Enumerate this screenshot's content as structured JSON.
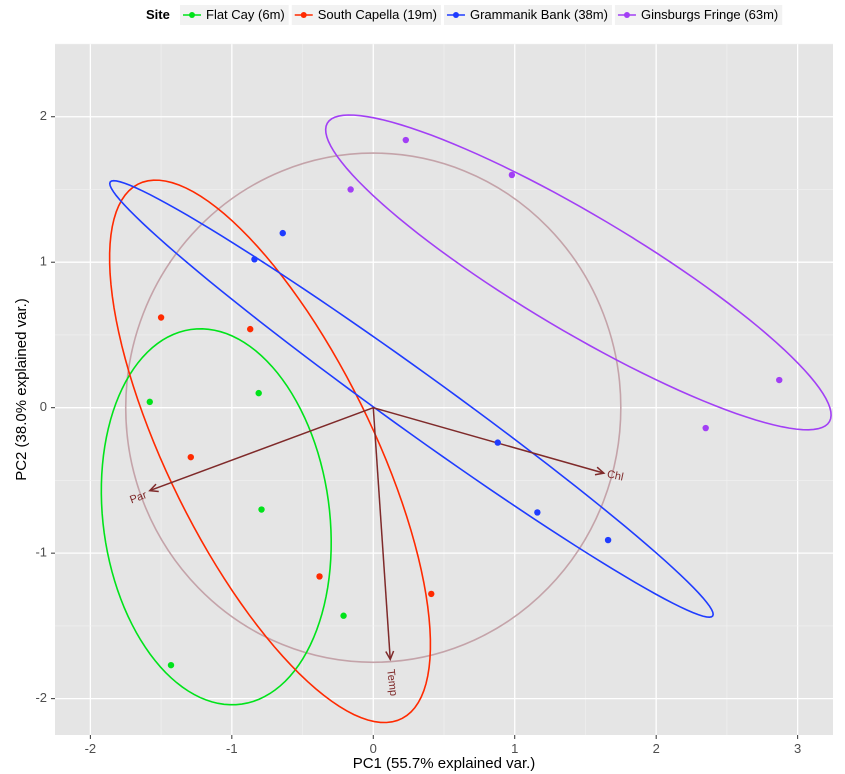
{
  "chart_data": {
    "type": "scatter",
    "title": "",
    "xlabel": "PC1 (55.7% explained var.)",
    "ylabel": "PC2 (38.0% explained var.)",
    "xlim": [
      -2.25,
      3.25
    ],
    "ylim": [
      -2.25,
      2.5
    ],
    "x_ticks": [
      -2,
      -1,
      0,
      1,
      2,
      3
    ],
    "y_ticks": [
      -2,
      -1,
      0,
      1,
      2
    ],
    "grid": true,
    "legend": {
      "title": "Site",
      "placement": "top"
    },
    "series": [
      {
        "name": "Flat Cay (6m)",
        "color": "#00e31a",
        "points": [
          [
            -1.58,
            0.04
          ],
          [
            -0.81,
            0.1
          ],
          [
            -0.79,
            -0.7
          ],
          [
            -0.21,
            -1.43
          ],
          [
            -1.43,
            -1.77
          ]
        ],
        "ellipse": {
          "cx": -1.11,
          "cy": -0.75,
          "rx": 0.8,
          "ry": 1.3,
          "angle": 8
        }
      },
      {
        "name": "South Capella (19m)",
        "color": "#ff2a00",
        "points": [
          [
            -1.5,
            0.62
          ],
          [
            -0.87,
            0.54
          ],
          [
            -1.29,
            -0.34
          ],
          [
            -0.38,
            -1.16
          ],
          [
            0.41,
            -1.28
          ]
        ],
        "ellipse": {
          "cx": -0.73,
          "cy": -0.3,
          "rx": 0.72,
          "ry": 2.06,
          "angle": 27
        }
      },
      {
        "name": "Grammanik Bank (38m)",
        "color": "#1f3cff",
        "points": [
          [
            -0.64,
            1.2
          ],
          [
            -0.84,
            1.02
          ],
          [
            0.88,
            -0.24
          ],
          [
            1.16,
            -0.72
          ],
          [
            1.66,
            -0.91
          ]
        ],
        "ellipse": {
          "cx": 0.27,
          "cy": 0.06,
          "rx": 2.6,
          "ry": 0.2,
          "angle": -35
        }
      },
      {
        "name": "Ginsburgs Fringe (63m)",
        "color": "#a23ff5",
        "points": [
          [
            -0.16,
            1.5
          ],
          [
            0.23,
            1.84
          ],
          [
            0.98,
            1.6
          ],
          [
            2.35,
            -0.14
          ],
          [
            2.87,
            0.19
          ]
        ],
        "ellipse": {
          "cx": 1.45,
          "cy": 0.93,
          "rx": 2.05,
          "ry": 0.4,
          "angle": -30
        }
      }
    ],
    "correlation_circle": {
      "cx": 0,
      "cy": 0,
      "r": 1.75,
      "color": "#c4a3a9"
    },
    "loadings": [
      {
        "label": "Par",
        "x": -1.58,
        "y": -0.57,
        "lx": -1.66,
        "ly": -0.62,
        "rot": -20
      },
      {
        "label": "Chl",
        "x": 1.63,
        "y": -0.45,
        "lx": 1.71,
        "ly": -0.47,
        "rot": 12
      },
      {
        "label": "Temp",
        "x": 0.12,
        "y": -1.73,
        "lx": 0.13,
        "ly": -1.89,
        "rot": 83
      }
    ],
    "loading_color": "#7f2a2a"
  }
}
